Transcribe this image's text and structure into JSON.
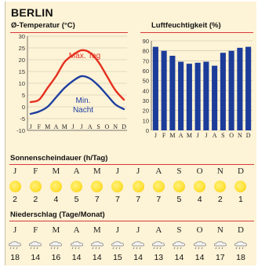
{
  "city": "BERLIN",
  "colors": {
    "accent_line": "#d83a3a",
    "max_temp": "#e53020",
    "min_temp": "#1f3fa0",
    "bars": "#1c3c9a",
    "sun": "#ffe23a",
    "background": "#fdf3d6"
  },
  "temperature": {
    "title": "Ø-Temperatur (°C)",
    "max_label": "Max. Tag",
    "min_label_1": "Min.",
    "min_label_2": "Nacht"
  },
  "humidity": {
    "title": "Luftfeuchtigkeit (%)"
  },
  "sunshine": {
    "title": "Sonnenscheindauer (h/Tag)"
  },
  "precipitation": {
    "title": "Niederschlag (Tage/Monat)"
  },
  "months": [
    "J",
    "F",
    "M",
    "A",
    "M",
    "J",
    "J",
    "A",
    "S",
    "O",
    "N",
    "D"
  ],
  "chart_data": [
    {
      "type": "line",
      "title": "Ø-Temperatur (°C)",
      "categories": [
        "J",
        "F",
        "M",
        "A",
        "M",
        "J",
        "J",
        "A",
        "S",
        "O",
        "N",
        "D"
      ],
      "ylim": [
        -10,
        30
      ],
      "yticks": [
        -10,
        -5,
        0,
        5,
        10,
        15,
        20,
        25,
        30
      ],
      "grid": true,
      "series": [
        {
          "name": "Max. Tag",
          "values": [
            2,
            3,
            8,
            13,
            19,
            22,
            24,
            23,
            19,
            13,
            7,
            3
          ]
        },
        {
          "name": "Min. Nacht",
          "values": [
            -3,
            -2,
            0,
            4,
            8,
            11,
            13,
            12,
            9,
            5,
            1,
            -1
          ]
        }
      ]
    },
    {
      "type": "bar",
      "title": "Luftfeuchtigkeit (%)",
      "categories": [
        "J",
        "F",
        "M",
        "A",
        "M",
        "J",
        "J",
        "A",
        "S",
        "O",
        "N",
        "D"
      ],
      "values": [
        84,
        80,
        75,
        69,
        67,
        68,
        69,
        65,
        78,
        80,
        83,
        84
      ],
      "ylim": [
        0,
        90
      ],
      "yticks": [
        0,
        10,
        20,
        30,
        40,
        50,
        60,
        70,
        80,
        90
      ],
      "grid": true
    },
    {
      "type": "table",
      "title": "Sonnenscheindauer (h/Tag)",
      "categories": [
        "J",
        "F",
        "M",
        "A",
        "M",
        "J",
        "J",
        "A",
        "S",
        "O",
        "N",
        "D"
      ],
      "values": [
        2,
        2,
        4,
        5,
        7,
        7,
        7,
        7,
        5,
        4,
        2,
        1
      ]
    },
    {
      "type": "table",
      "title": "Niederschlag (Tage/Monat)",
      "categories": [
        "J",
        "F",
        "M",
        "A",
        "M",
        "J",
        "J",
        "A",
        "S",
        "O",
        "N",
        "D"
      ],
      "values": [
        18,
        14,
        16,
        14,
        14,
        15,
        14,
        13,
        14,
        14,
        17,
        18
      ]
    }
  ]
}
